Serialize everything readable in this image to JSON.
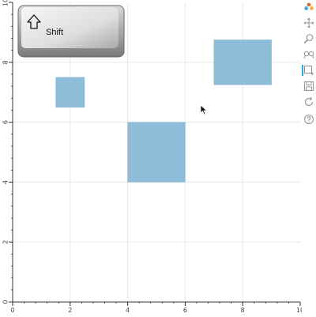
{
  "chart_data": {
    "type": "bar",
    "xlim": [
      0,
      10
    ],
    "ylim": [
      0,
      10
    ],
    "grid": true,
    "x_ticks": [
      "0",
      "2",
      "4",
      "6",
      "8",
      "10"
    ],
    "y_ticks": [
      "0",
      "2",
      "4",
      "6",
      "8",
      "10"
    ],
    "fill_color": "#8fbcd9",
    "rects": [
      {
        "x0": 1.5,
        "x1": 2.5,
        "y0": 6.5,
        "y1": 7.5
      },
      {
        "x0": 4.0,
        "x1": 6.0,
        "y0": 4.0,
        "y1": 6.0
      },
      {
        "x0": 7.0,
        "x1": 9.0,
        "y0": 7.25,
        "y1": 8.75
      }
    ]
  },
  "overlay": {
    "key_label": "Shift",
    "key_icon": "shift-arrow-icon"
  },
  "toolbar": {
    "tools": [
      {
        "name": "bokeh-logo-icon",
        "active": false
      },
      {
        "name": "pan-icon",
        "active": false
      },
      {
        "name": "box-zoom-icon",
        "active": false
      },
      {
        "name": "wheel-zoom-icon",
        "active": false
      },
      {
        "name": "box-edit-icon",
        "active": true
      },
      {
        "name": "save-icon",
        "active": false
      },
      {
        "name": "reset-icon",
        "active": false
      },
      {
        "name": "help-icon",
        "active": false
      }
    ],
    "active_color": "#26aae1"
  }
}
